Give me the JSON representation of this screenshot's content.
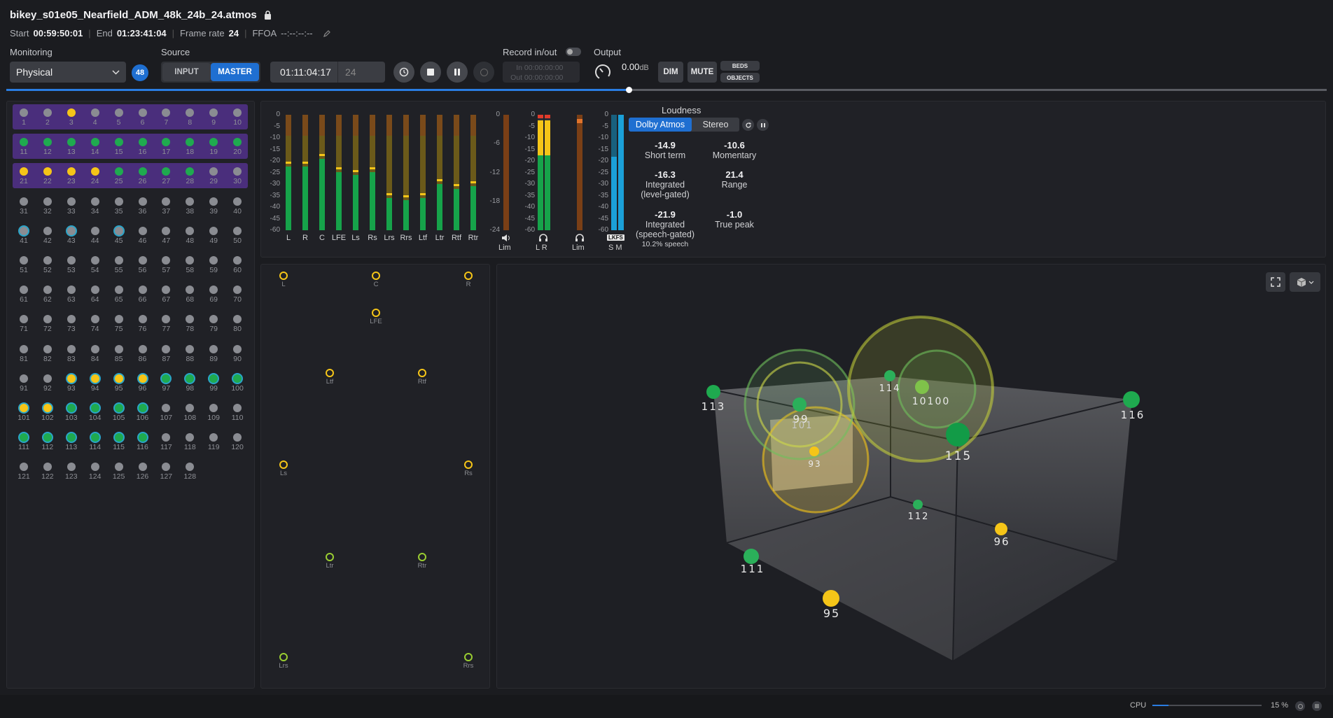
{
  "header": {
    "filename": "bikey_s01e05_Nearfield_ADM_48k_24b_24.atmos",
    "start_label": "Start",
    "start": "00:59:50:01",
    "end_label": "End",
    "end": "01:23:41:04",
    "frame_rate_label": "Frame rate",
    "frame_rate": "24",
    "ffoa_label": "FFOA",
    "ffoa": "--:--:--:--"
  },
  "monitoring": {
    "label": "Monitoring",
    "value": "Physical",
    "badge": "48"
  },
  "source": {
    "label": "Source",
    "input": "INPUT",
    "master": "MASTER"
  },
  "timecode": {
    "value": "01:11:04:17",
    "frames": "24"
  },
  "record": {
    "label": "Record in/out",
    "in_label": "In",
    "in": "00:00:00:00",
    "out_label": "Out",
    "out": "00:00:00:00"
  },
  "output": {
    "label": "Output",
    "level": "0.00",
    "unit": "dB",
    "dim": "DIM",
    "mute": "MUTE",
    "beds": "BEDS",
    "objects": "OBJECTS"
  },
  "channels": [
    "1",
    "2",
    "3",
    "4",
    "5",
    "6",
    "7",
    "8",
    "9",
    "10",
    "11",
    "12",
    "13",
    "14",
    "15",
    "16",
    "17",
    "18",
    "19",
    "20",
    "21",
    "22",
    "23",
    "24",
    "25",
    "26",
    "27",
    "28",
    "29",
    "30",
    "31",
    "32",
    "33",
    "34",
    "35",
    "36",
    "37",
    "38",
    "39",
    "40",
    "41",
    "42",
    "43",
    "44",
    "45",
    "46",
    "47",
    "48",
    "49",
    "50",
    "51",
    "52",
    "53",
    "54",
    "55",
    "56",
    "57",
    "58",
    "59",
    "60",
    "61",
    "62",
    "63",
    "64",
    "65",
    "66",
    "67",
    "68",
    "69",
    "70",
    "71",
    "72",
    "73",
    "74",
    "75",
    "76",
    "77",
    "78",
    "79",
    "80",
    "81",
    "82",
    "83",
    "84",
    "85",
    "86",
    "87",
    "88",
    "89",
    "90",
    "91",
    "92",
    "93",
    "94",
    "95",
    "96",
    "97",
    "98",
    "99",
    "100",
    "101",
    "102",
    "103",
    "104",
    "105",
    "106",
    "107",
    "108",
    "109",
    "110",
    "111",
    "112",
    "113",
    "114",
    "115",
    "116",
    "117",
    "118",
    "119",
    "120",
    "121",
    "122",
    "123",
    "124",
    "125",
    "126",
    "127",
    "128"
  ],
  "channel_states": {
    "yellow": [
      3,
      21,
      22,
      23,
      24,
      93,
      94,
      95,
      96,
      101,
      102
    ],
    "green": [
      11,
      12,
      13,
      14,
      15,
      16,
      17,
      18,
      19,
      20,
      25,
      26,
      27,
      28,
      97,
      98,
      99,
      100,
      103,
      104,
      105,
      106,
      111,
      112,
      113,
      114,
      115,
      116
    ],
    "ring": [
      41,
      43,
      45,
      93,
      94,
      95,
      96,
      97,
      98,
      99,
      100,
      101,
      102,
      103,
      104,
      105,
      106,
      111,
      112,
      113,
      114,
      115,
      116
    ]
  },
  "meters": {
    "scale": [
      "0",
      "-5",
      "-10",
      "-15",
      "-20",
      "-25",
      "-30",
      "-35",
      "-40",
      "-45",
      "-60"
    ],
    "labels": [
      "L",
      "R",
      "C",
      "LFE",
      "Ls",
      "Rs",
      "Lrs",
      "Rrs",
      "Ltf",
      "Ltr",
      "Rtf",
      "Rtr"
    ],
    "levels": [
      0.55,
      0.55,
      0.62,
      0.5,
      0.48,
      0.5,
      0.28,
      0.26,
      0.28,
      0.4,
      0.36,
      0.38
    ],
    "lim_scale": [
      "0",
      "-6",
      "-12",
      "-18",
      "-24"
    ],
    "lim_label": "Lim",
    "lr_scale": [
      "0",
      "-5",
      "-10",
      "-15",
      "-20",
      "-25",
      "-30",
      "-35",
      "-40",
      "-45",
      "-60"
    ],
    "lr_label": "L R",
    "lim2_label": "Lim",
    "lkfs_label": "LKFS",
    "sm_label": "S M"
  },
  "loudness": {
    "title": "Loudness",
    "tab_atmos": "Dolby Atmos",
    "tab_stereo": "Stereo",
    "short_term": "-14.9",
    "short_term_label": "Short term",
    "momentary": "-10.6",
    "momentary_label": "Momentary",
    "integrated_level": "-16.3",
    "integrated_level_label": "Integrated\n(level-gated)",
    "range": "21.4",
    "range_label": "Range",
    "integrated_speech": "-21.9",
    "integrated_speech_label": "Integrated\n(speech-gated)",
    "speech_pct": "10.2% speech",
    "true_peak": "-1.0",
    "true_peak_label": "True peak"
  },
  "speakers": [
    {
      "id": "L",
      "color": "yellow"
    },
    {
      "id": "C",
      "color": "yellow"
    },
    {
      "id": "R",
      "color": "yellow"
    },
    {
      "id": "LFE",
      "color": "yellow"
    },
    {
      "id": "Ltf",
      "color": "yellow"
    },
    {
      "id": "Rtf",
      "color": "yellow"
    },
    {
      "id": "Ls",
      "color": "yellow"
    },
    {
      "id": "Rs",
      "color": "yellow"
    },
    {
      "id": "Ltr",
      "color": "green"
    },
    {
      "id": "Rtr",
      "color": "green"
    },
    {
      "id": "Lrs",
      "color": "green"
    },
    {
      "id": "Rrs",
      "color": "green"
    }
  ],
  "objects3d": [
    "113",
    "99",
    "101",
    "93",
    "114",
    "10100",
    "115",
    "116",
    "112",
    "96",
    "111",
    "95"
  ],
  "footer": {
    "cpu_label": "CPU",
    "cpu_value": "15 %",
    "cpu_fraction": 0.15
  }
}
